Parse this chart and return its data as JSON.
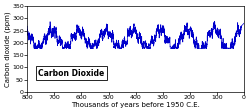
{
  "title": "Carbon Dioxide",
  "xlabel": "Thousands of years before 1950 C.E.",
  "ylabel": "Carbon dioxide (ppm)",
  "xlim": [
    800,
    0
  ],
  "ylim": [
    0,
    350
  ],
  "yticks": [
    0,
    50,
    100,
    150,
    200,
    250,
    300,
    350
  ],
  "xticks": [
    800,
    700,
    600,
    500,
    400,
    300,
    200,
    100,
    0
  ],
  "line_color": "#0000CC",
  "background_color": "#ffffff",
  "legend_text": "Carbon Dioxide",
  "legend_fontsize": 5.5,
  "axis_fontsize": 5,
  "tick_fontsize": 4.5
}
